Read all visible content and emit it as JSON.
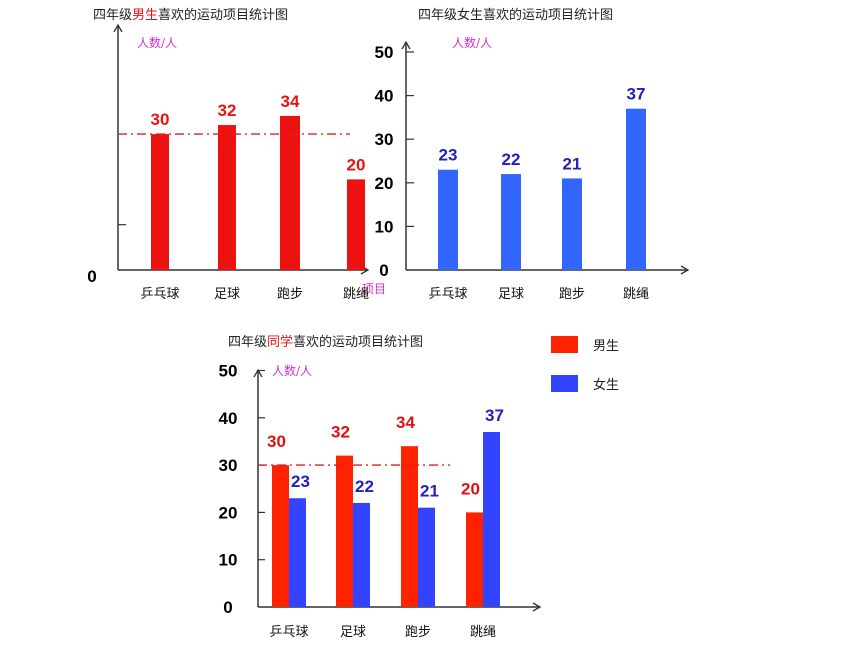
{
  "chart_data": [
    {
      "id": "boys",
      "type": "bar",
      "title_parts": [
        "四年级",
        "男生",
        "喜欢的运动项目统计图"
      ],
      "ylabel": "人数/人",
      "xlabel": "项目",
      "categories": [
        "乒乓球",
        "足球",
        "跑步",
        "跳绳"
      ],
      "series": [
        {
          "values": [
            30,
            32,
            34,
            20
          ],
          "color": "#ee1111"
        }
      ],
      "ylim": [
        0,
        50
      ],
      "y_ticks_labeled": [
        0
      ],
      "y_ticks_unlabeled": [
        10
      ],
      "reference_line": 30,
      "reference_color": "#dd2222"
    },
    {
      "id": "girls",
      "type": "bar",
      "title_parts": [
        "四年级女生喜欢的运动项目统计图"
      ],
      "ylabel": "人数/人",
      "categories": [
        "乒乓球",
        "足球",
        "跑步",
        "跳绳"
      ],
      "series": [
        {
          "values": [
            23,
            22,
            21,
            37
          ],
          "color": "#3366ff"
        }
      ],
      "ylim": [
        0,
        50
      ],
      "y_ticks_labeled": [
        0,
        10,
        20,
        30,
        40,
        50
      ],
      "value_label_color": "#2222bb"
    },
    {
      "id": "combined",
      "type": "bar",
      "title_parts": [
        "四年级",
        "同学",
        "喜欢的运动项目统计图"
      ],
      "ylabel": "人数/人",
      "categories": [
        "乒乓球",
        "足球",
        "跑步",
        "跳绳"
      ],
      "series": [
        {
          "name": "男生",
          "values": [
            30,
            32,
            34,
            20
          ],
          "color": "#ff2200",
          "label_color": "#dd1111"
        },
        {
          "name": "女生",
          "values": [
            23,
            22,
            21,
            37
          ],
          "color": "#3344ff",
          "label_color": "#2222bb"
        }
      ],
      "ylim": [
        0,
        50
      ],
      "y_ticks_labeled": [
        0,
        10,
        20,
        30,
        40,
        50
      ],
      "reference_line": 30,
      "reference_color": "#dd2222",
      "legend_placement": "right"
    }
  ]
}
